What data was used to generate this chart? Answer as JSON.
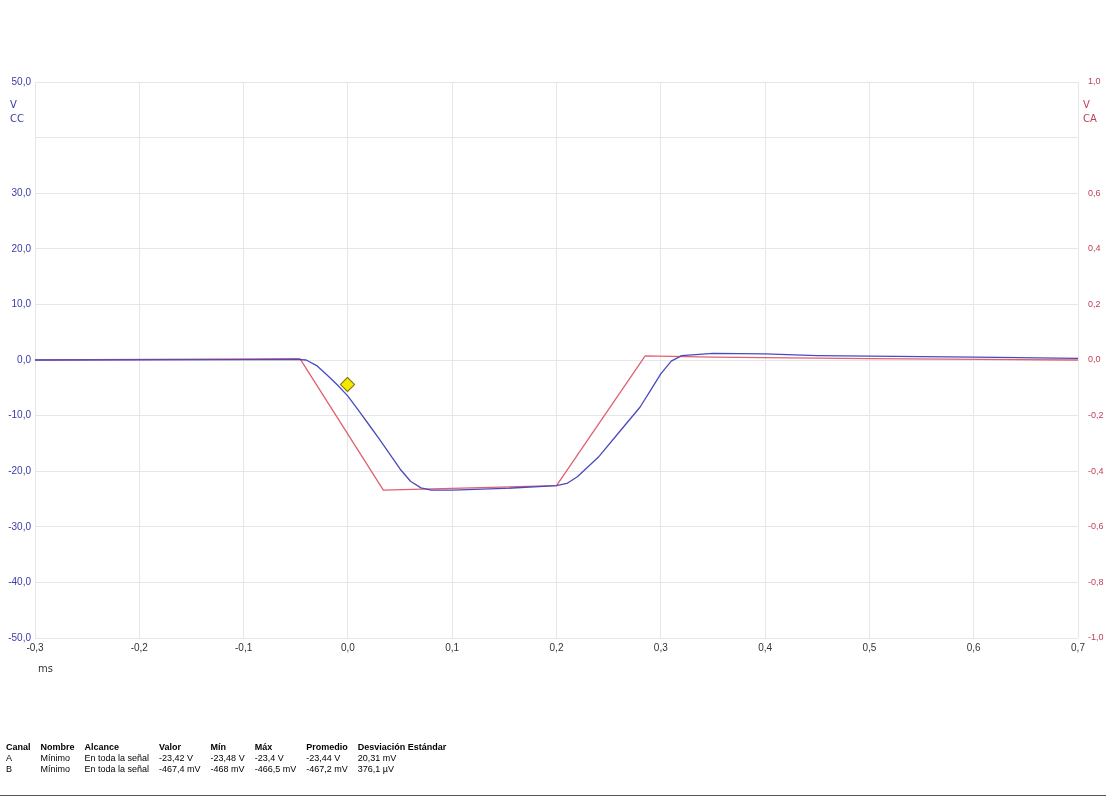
{
  "chart_data": {
    "type": "line",
    "xlabel": "ms",
    "ylabel": "V\nCC",
    "y2label": "V\nCA",
    "grid": true,
    "legend": false,
    "marker": "none",
    "line_style": "solid",
    "xlim": [
      -0.3,
      0.7
    ],
    "xticks": [
      {
        "value": -0.3,
        "label": "-0,3"
      },
      {
        "value": -0.2,
        "label": "-0,2"
      },
      {
        "value": -0.1,
        "label": "-0,1"
      },
      {
        "value": 0,
        "label": "0,0"
      },
      {
        "value": 0.1,
        "label": "0,1"
      },
      {
        "value": 0.2,
        "label": "0,2"
      },
      {
        "value": 0.3,
        "label": "0,3"
      },
      {
        "value": 0.4,
        "label": "0,4"
      },
      {
        "value": 0.5,
        "label": "0,5"
      },
      {
        "value": 0.6,
        "label": "0,6"
      },
      {
        "value": 0.7,
        "label": "0,7"
      }
    ],
    "ylim": [
      -50,
      50
    ],
    "yticks": [
      {
        "value": -50,
        "label": "-50,0"
      },
      {
        "value": -40,
        "label": "-40,0"
      },
      {
        "value": -30,
        "label": "-30,0"
      },
      {
        "value": -20,
        "label": "-20,0"
      },
      {
        "value": -10,
        "label": "-10,0"
      },
      {
        "value": 0,
        "label": "0,0"
      },
      {
        "value": 10,
        "label": "10,0"
      },
      {
        "value": 20,
        "label": "20,0"
      },
      {
        "value": 30,
        "label": "30,0"
      },
      {
        "value": 40,
        "label": null
      },
      {
        "value": 50,
        "label": "50,0"
      }
    ],
    "y2lim": [
      -1,
      1
    ],
    "y2ticks": [
      {
        "value": -1,
        "label": "-1,0"
      },
      {
        "value": -0.8,
        "label": "-0,8"
      },
      {
        "value": -0.6,
        "label": "-0,6"
      },
      {
        "value": -0.4,
        "label": "-0,4"
      },
      {
        "value": -0.2,
        "label": "-0,2"
      },
      {
        "value": 0,
        "label": "0,0"
      },
      {
        "value": 0.2,
        "label": "0,2"
      },
      {
        "value": 0.4,
        "label": "0,4"
      },
      {
        "value": 0.6,
        "label": "0,6"
      },
      {
        "value": 0.8,
        "label": null
      },
      {
        "value": 1,
        "label": "1,0"
      }
    ],
    "series": [
      {
        "color": "#4a4ac0",
        "x": [
          -0.3,
          -0.05,
          -0.04,
          -0.03,
          -0.02,
          -0.01,
          0,
          0.01,
          0.02,
          0.03,
          0.04,
          0.05,
          0.06,
          0.07,
          0.08,
          0.1,
          0.15,
          0.2,
          0.21,
          0.22,
          0.24,
          0.26,
          0.28,
          0.29,
          0.3,
          0.31,
          0.32,
          0.35,
          0.4,
          0.45,
          0.5,
          0.6,
          0.7
        ],
        "values": [
          0,
          0.1,
          0,
          -1,
          -2.7,
          -4.5,
          -6.5,
          -9,
          -11.6,
          -14.2,
          -16.9,
          -19.6,
          -21.8,
          -23,
          -23.4,
          -23.4,
          -23.1,
          -22.6,
          -22.2,
          -21,
          -17.5,
          -13,
          -8.5,
          -5.5,
          -2.5,
          -0.2,
          0.8,
          1.2,
          1.1,
          0.8,
          0.7,
          0.5,
          0.3
        ]
      },
      {
        "color": "#e06070",
        "axis": "y2",
        "x": [
          -0.3,
          -0.046,
          0.034,
          0.1,
          0.2,
          0.285,
          0.35,
          0.5,
          0.7
        ],
        "values": [
          0,
          0.005,
          -0.468,
          -0.462,
          -0.452,
          0.015,
          0.01,
          0.005,
          0
        ]
      }
    ],
    "annotations": [
      "Canal\tNombre\tAlcance\tValor\tMín\tMáx\tPromedio\tDesviación Estándar",
      "A\tMínimo\tEn toda la señal\t-23,42 V\t-23,48 V\t-23,4 V\t-23,44 V\t20,31 mV",
      "B\tMínimo\tEn toda la señal\t-467,4 mV\t-468 mV\t-466,5 mV\t-467,2 mV\t376,1 µV"
    ]
  }
}
